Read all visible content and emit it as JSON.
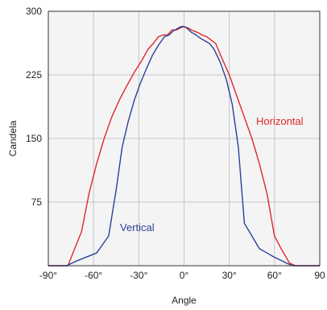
{
  "chart_data": {
    "type": "line",
    "title": "",
    "xlabel": "Angle",
    "ylabel": "Candela",
    "xlim": [
      -90,
      90
    ],
    "ylim": [
      0,
      300
    ],
    "grid": true,
    "x_ticks": [
      -90,
      -60,
      -30,
      0,
      30,
      60,
      90
    ],
    "x_tick_labels": [
      "-90°",
      "-60°",
      "-30°",
      "0°",
      "30°",
      "60°",
      "90"
    ],
    "y_ticks": [
      0,
      75,
      150,
      225,
      300
    ],
    "y_tick_labels": [
      "",
      "75",
      "150",
      "225",
      "300"
    ],
    "series": [
      {
        "name": "Horizontal",
        "color": "#e0262b",
        "x": [
          -90,
          -77,
          -73,
          -68,
          -63,
          -58,
          -53,
          -48,
          -43,
          -38,
          -33,
          -28,
          -24,
          -20,
          -17,
          -14,
          -11,
          -8,
          -5,
          -3,
          0,
          3,
          6,
          9,
          12,
          15,
          18,
          21,
          25,
          30,
          35,
          40,
          45,
          50,
          55,
          60,
          65,
          70,
          74,
          78,
          90
        ],
        "y": [
          0,
          0,
          18,
          40,
          85,
          120,
          150,
          175,
          195,
          212,
          228,
          242,
          255,
          263,
          270,
          272,
          272,
          278,
          278,
          280,
          282,
          280,
          277,
          275,
          272,
          270,
          266,
          262,
          245,
          225,
          200,
          175,
          150,
          120,
          85,
          35,
          18,
          3,
          0,
          0,
          0
        ]
      },
      {
        "name": "Vertical",
        "color": "#2c3f99",
        "x": [
          -90,
          -78,
          -72,
          -58,
          -50,
          -45,
          -41,
          -37,
          -33,
          -29,
          -25,
          -21,
          -17,
          -13,
          -10,
          -7,
          -4,
          -2,
          0,
          2,
          5,
          8,
          11,
          14,
          17,
          20,
          24,
          28,
          32,
          36,
          40,
          45,
          50,
          55,
          60,
          68,
          72,
          90
        ],
        "y": [
          0,
          0,
          5,
          15,
          35,
          90,
          140,
          170,
          195,
          215,
          232,
          248,
          260,
          270,
          272,
          277,
          280,
          282,
          282,
          280,
          275,
          272,
          268,
          265,
          262,
          255,
          240,
          220,
          190,
          140,
          50,
          35,
          20,
          15,
          10,
          3,
          0,
          0
        ]
      }
    ],
    "annotations": [
      {
        "text": "Horizontal",
        "series": "Horizontal"
      },
      {
        "text": "Vertical",
        "series": "Vertical"
      }
    ]
  }
}
